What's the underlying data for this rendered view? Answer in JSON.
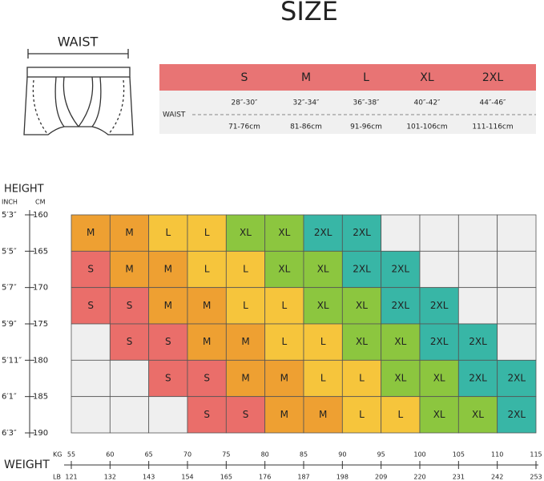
{
  "title": "SIZE",
  "waist_label": "WAIST",
  "waist_table": {
    "row_label": "WAIST",
    "sizes": [
      "S",
      "M",
      "L",
      "XL",
      "2XL"
    ],
    "inch": [
      "28″-30″",
      "32″-34″",
      "36″-38″",
      "40″-42″",
      "44″-46″"
    ],
    "cm": [
      "71-76cm",
      "81-86cm",
      "91-96cm",
      "101-106cm",
      "111-116cm"
    ]
  },
  "height": {
    "title": "HEIGHT",
    "inch_label": "INCH",
    "cm_label": "CM",
    "inch": [
      "5′3″",
      "5′5″",
      "5′7″",
      "5′9″",
      "5′11″",
      "6′1″",
      "6′3″"
    ],
    "cm": [
      160,
      165,
      170,
      175,
      180,
      185,
      190
    ]
  },
  "weight": {
    "title": "WEIGHT",
    "kg_label": "KG",
    "lb_label": "LB",
    "kg": [
      55,
      60,
      65,
      70,
      75,
      80,
      85,
      90,
      95,
      100,
      105,
      110,
      115
    ],
    "lb": [
      121,
      132,
      143,
      154,
      165,
      176,
      187,
      198,
      209,
      220,
      231,
      242,
      253
    ]
  },
  "grid": [
    [
      "M",
      "M",
      "L",
      "L",
      "XL",
      "XL",
      "2XL",
      "2XL",
      null,
      null,
      null,
      null
    ],
    [
      "S",
      "M",
      "M",
      "L",
      "L",
      "XL",
      "XL",
      "2XL",
      "2XL",
      null,
      null,
      null
    ],
    [
      "S",
      "S",
      "M",
      "M",
      "L",
      "L",
      "XL",
      "XL",
      "2XL",
      "2XL",
      null,
      null
    ],
    [
      null,
      "S",
      "S",
      "M",
      "M",
      "L",
      "L",
      "XL",
      "XL",
      "2XL",
      "2XL",
      null
    ],
    [
      null,
      null,
      "S",
      "S",
      "M",
      "M",
      "L",
      "L",
      "XL",
      "XL",
      "2XL",
      "2XL"
    ],
    [
      null,
      null,
      null,
      "S",
      "S",
      "M",
      "M",
      "L",
      "L",
      "XL",
      "XL",
      "2XL"
    ]
  ],
  "colors": {
    "S": "#ea6e6a",
    "M": "#eea032",
    "L": "#f6c53c",
    "XL": "#8cc63f",
    "2XL": "#38b6a6",
    "empty": "#efefef",
    "header": "#e87474"
  }
}
